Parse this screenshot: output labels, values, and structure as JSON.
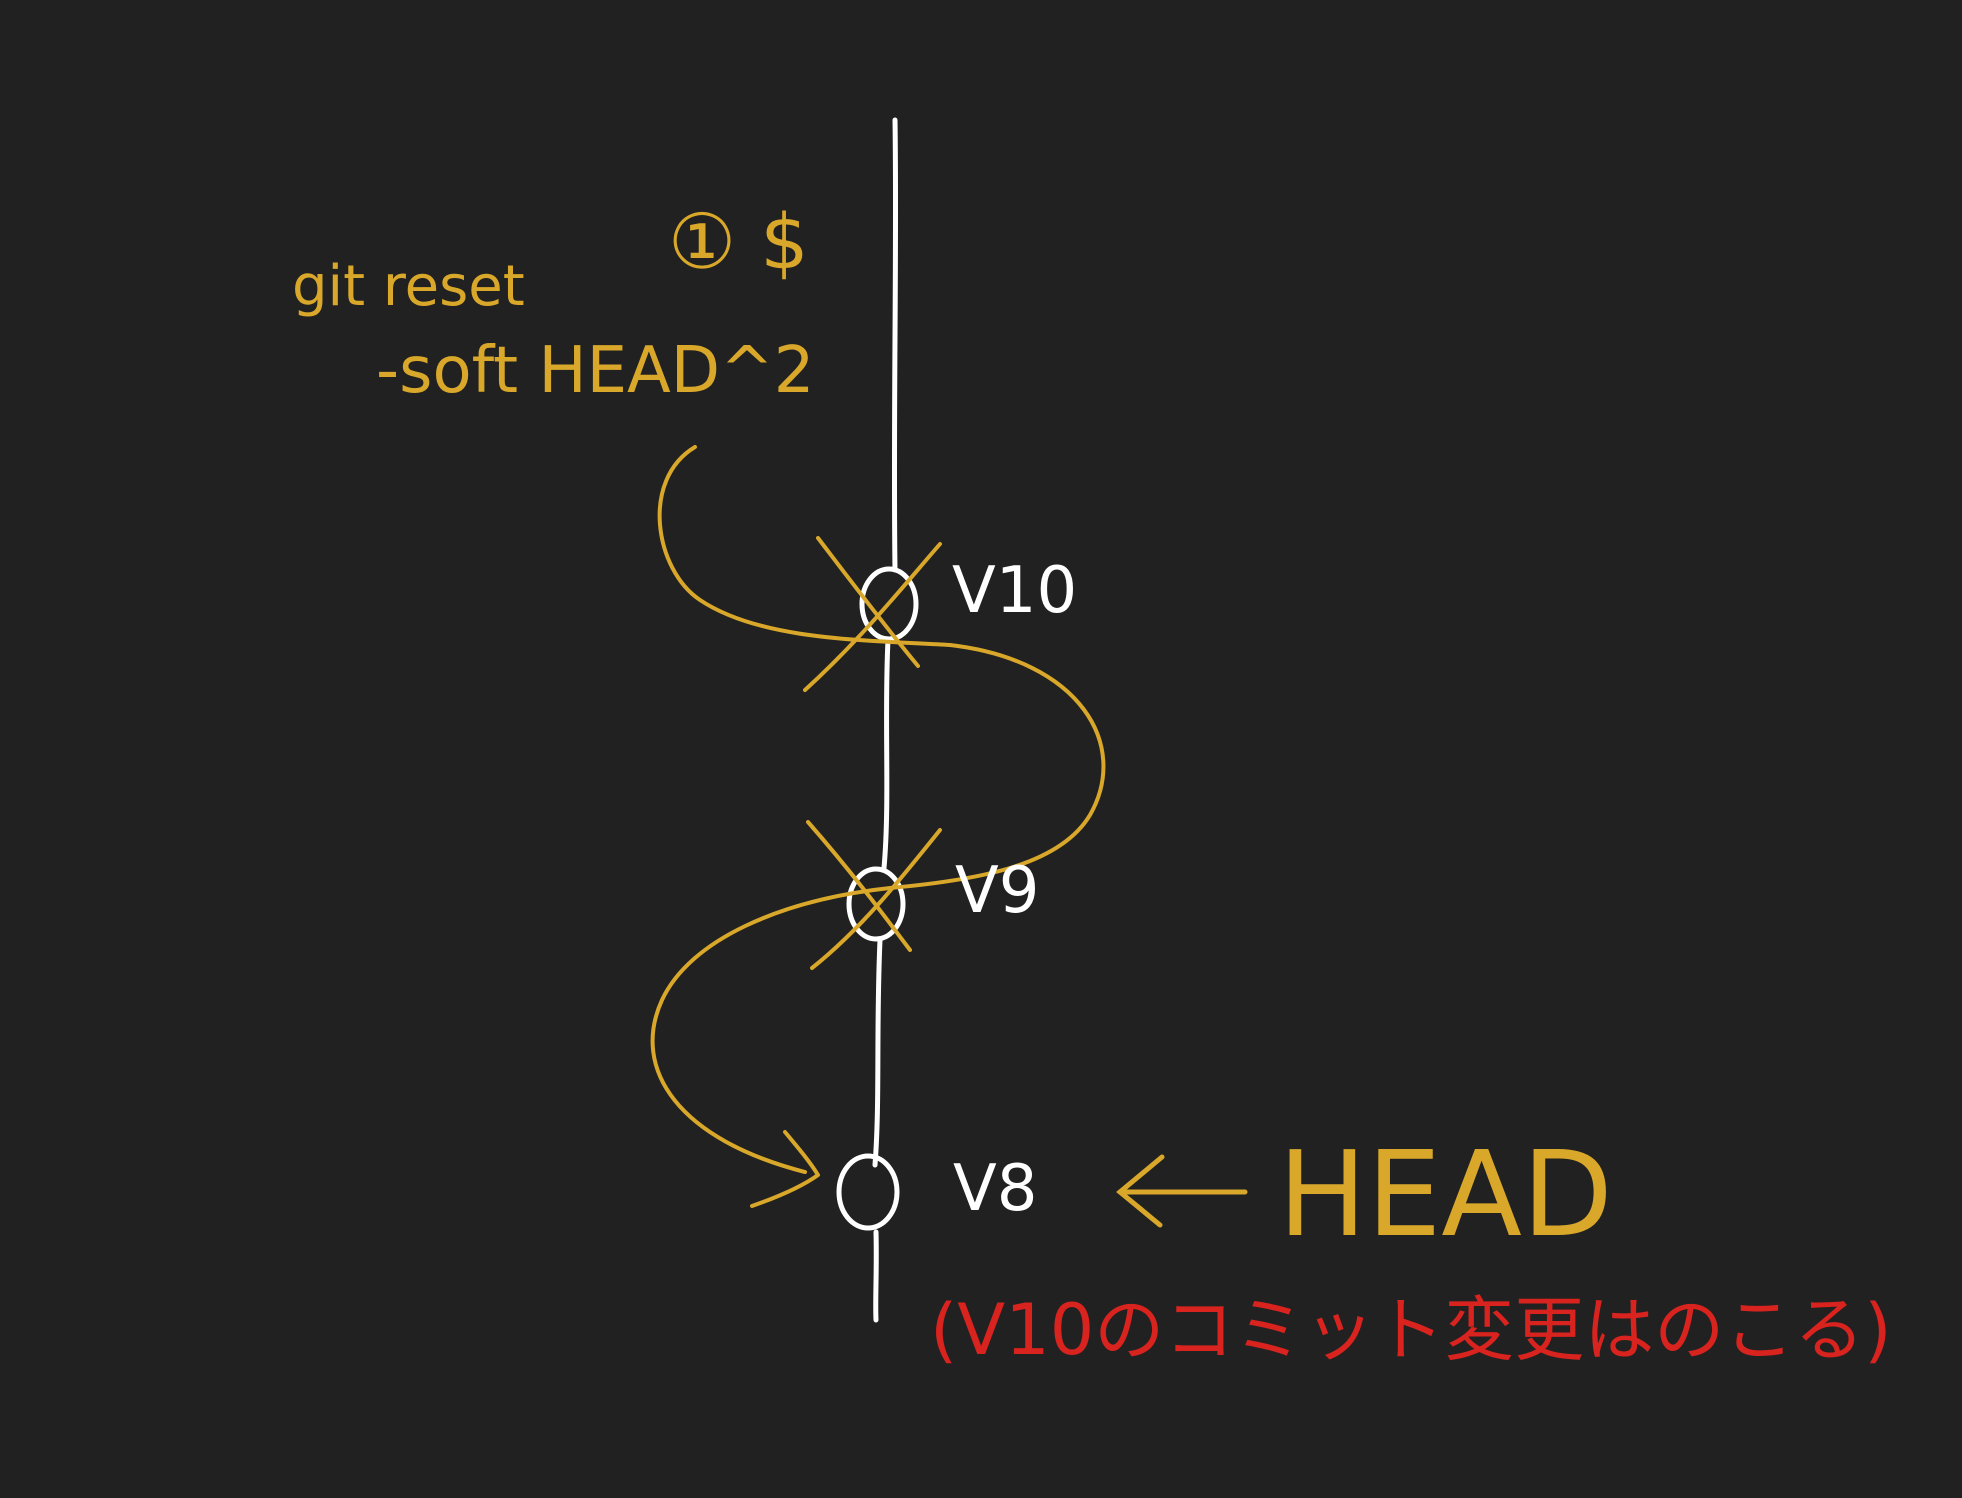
{
  "colors": {
    "background": "#212121",
    "line": "#ffffff",
    "annotation": "#d9a82a",
    "note": "#d8231f"
  },
  "step_marker": "① $",
  "command": {
    "line1": "git reset",
    "line2": "-soft HEAD^2"
  },
  "commits": [
    {
      "label": "V10",
      "crossed": true
    },
    {
      "label": "V9",
      "crossed": true
    },
    {
      "label": "V8",
      "crossed": false
    }
  ],
  "head_pointer": {
    "arrow": "←",
    "label": "HEAD"
  },
  "note": "(V10のコミット変更はのこる)"
}
